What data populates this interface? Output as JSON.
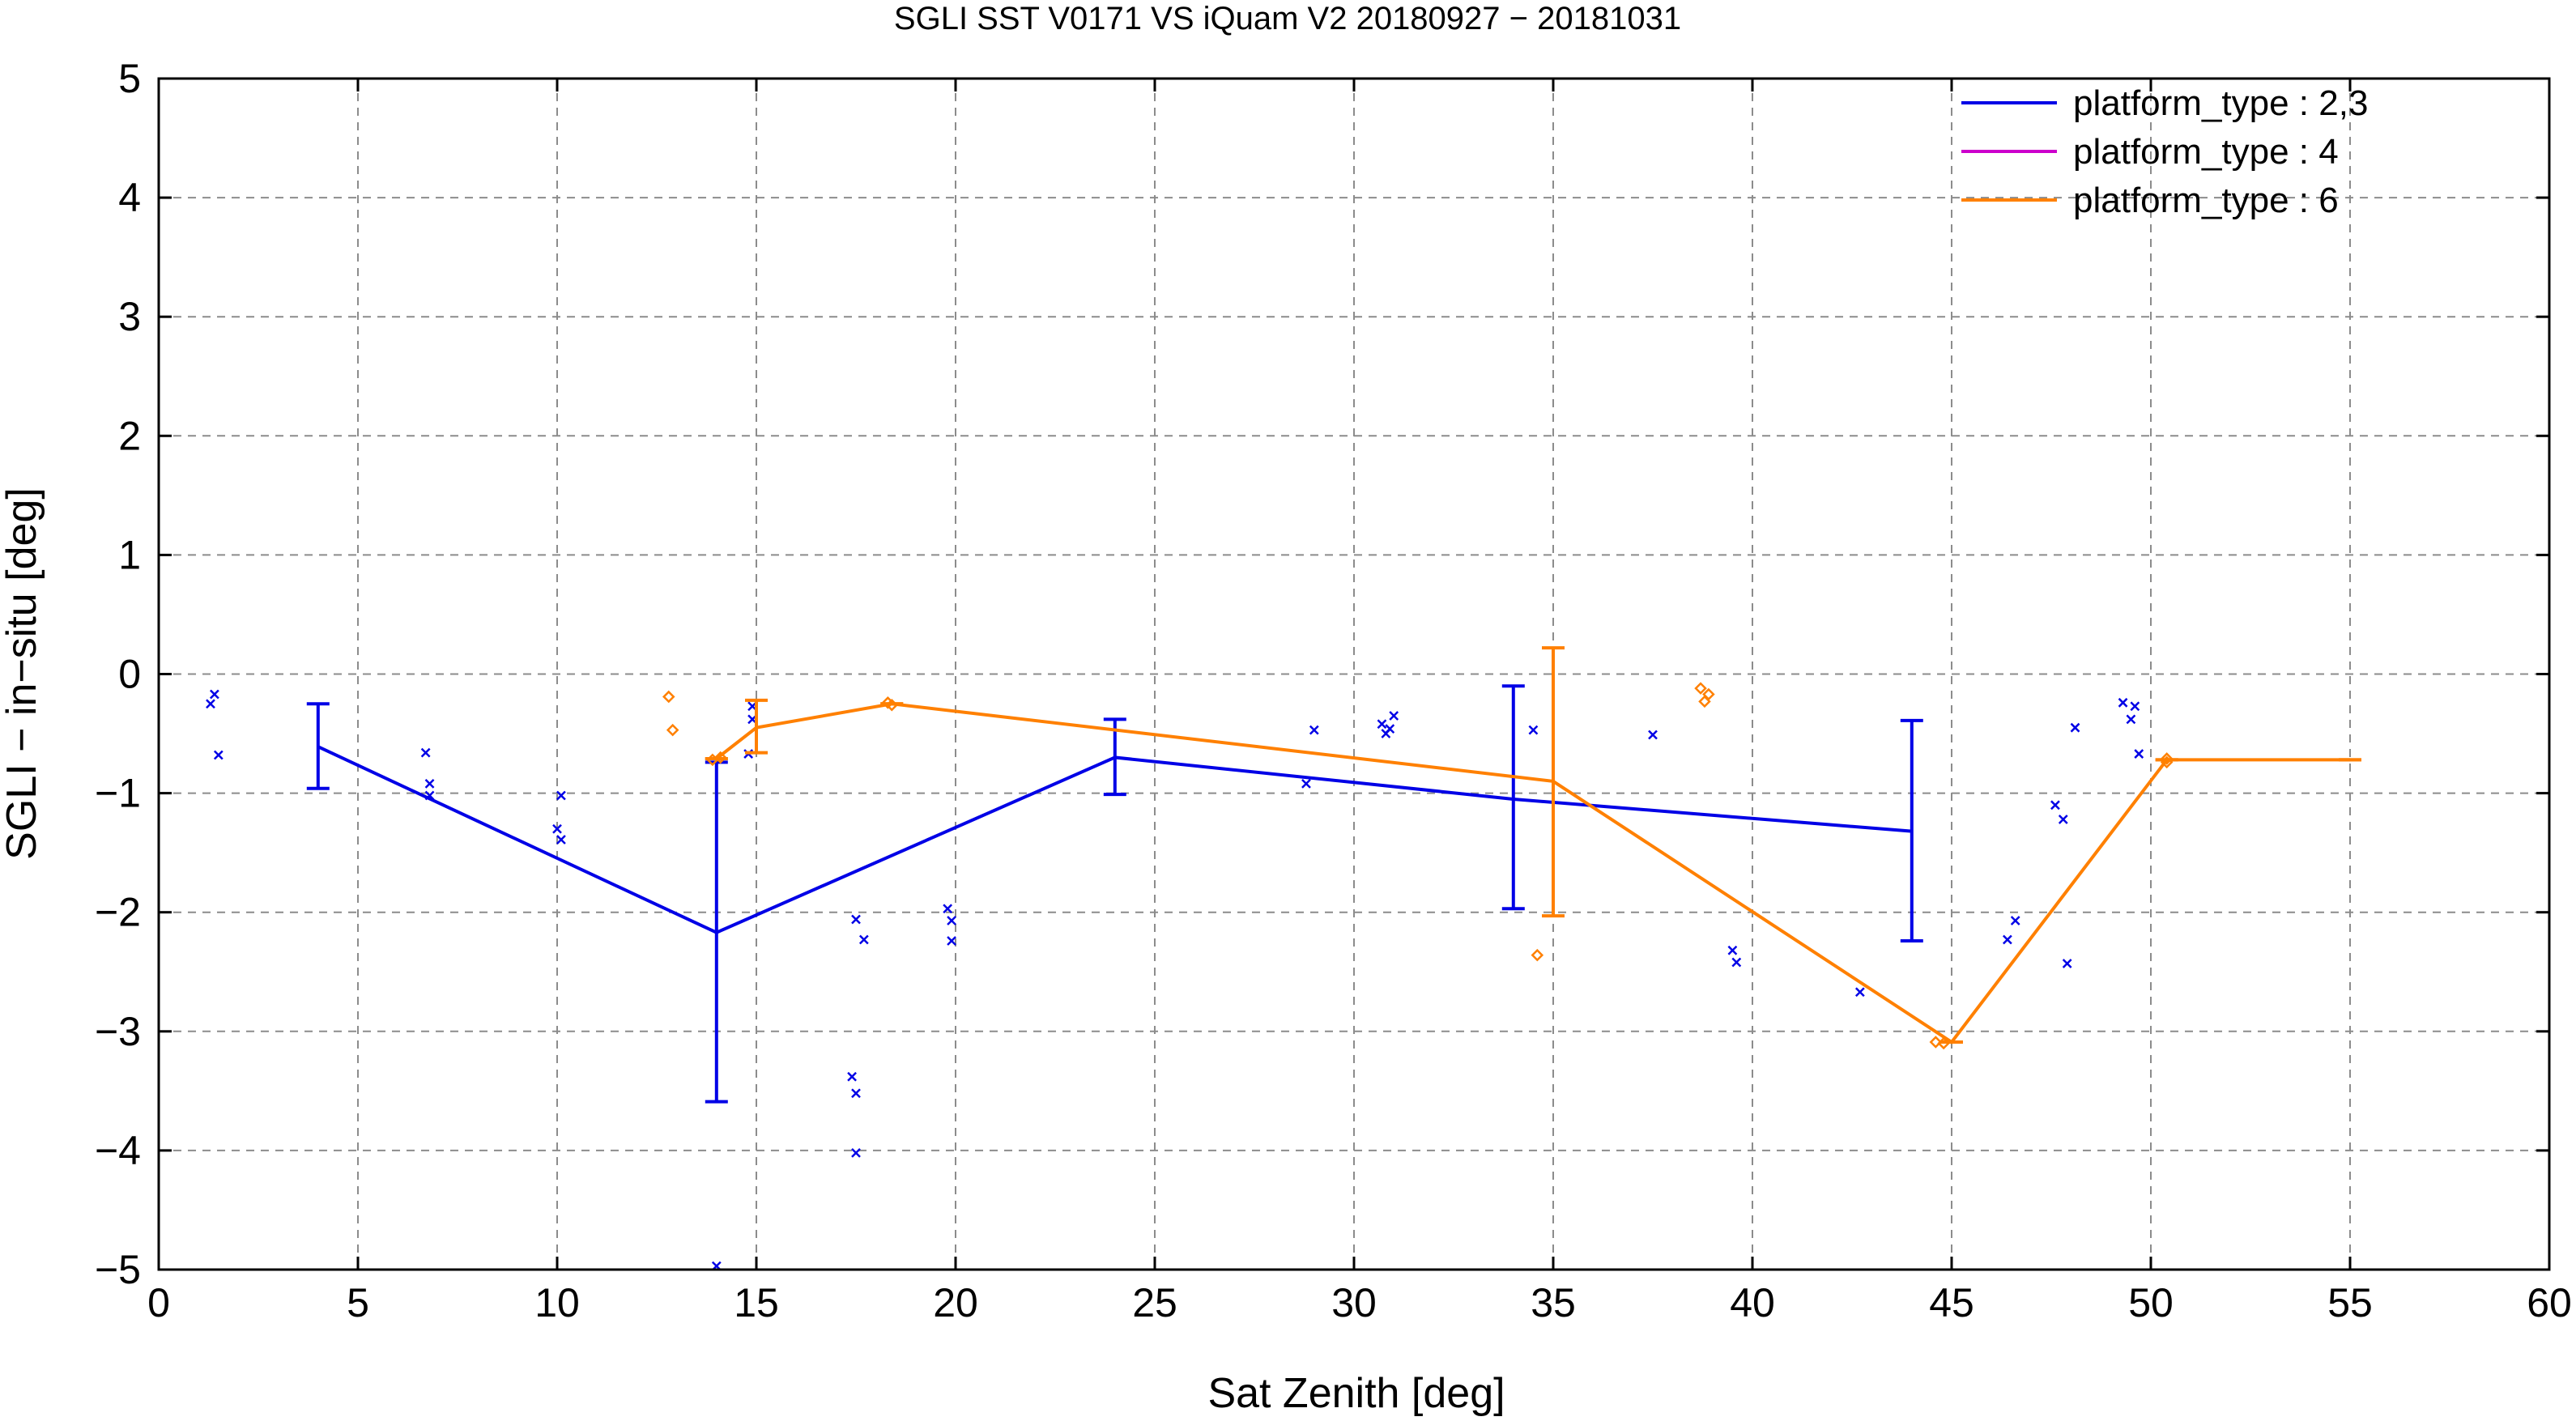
{
  "chart_data": {
    "type": "line",
    "title": "SGLI SST V0171 VS iQuam V2 20180927 − 20181031",
    "xlabel": "Sat Zenith [deg]",
    "ylabel": "SGLI − in−situ [deg]",
    "xlim": [
      0,
      60
    ],
    "ylim": [
      -5,
      5
    ],
    "x_ticks": [
      "0",
      "5",
      "10",
      "15",
      "20",
      "25",
      "30",
      "35",
      "40",
      "45",
      "50",
      "55",
      "60"
    ],
    "y_ticks": [
      "−5",
      "−4",
      "−3",
      "−2",
      "−1",
      "0",
      "1",
      "2",
      "3",
      "4",
      "5"
    ],
    "grid": true,
    "legend_position": "top-right",
    "series": [
      {
        "name": "platform_type : 2,3",
        "color": "#0000e6",
        "marker": "x",
        "line": [
          {
            "x": 4,
            "y": -0.61,
            "err_low": -0.96,
            "err_high": -0.25
          },
          {
            "x": 14,
            "y": -2.17,
            "err_low": -3.59,
            "err_high": -0.74
          },
          {
            "x": 24,
            "y": -0.7,
            "err_low": -1.01,
            "err_high": -0.38
          },
          {
            "x": 34,
            "y": -1.05,
            "err_low": -1.97,
            "err_high": -0.1
          },
          {
            "x": 44,
            "y": -1.32,
            "err_low": -2.24,
            "err_high": -0.39
          }
        ],
        "points": [
          [
            1.3,
            -0.25
          ],
          [
            1.4,
            -0.17
          ],
          [
            1.5,
            -0.68
          ],
          [
            6.7,
            -0.66
          ],
          [
            6.8,
            -0.92
          ],
          [
            6.8,
            -1.02
          ],
          [
            10.0,
            -1.3
          ],
          [
            10.1,
            -1.39
          ],
          [
            10.1,
            -1.02
          ],
          [
            14.0,
            -4.97
          ],
          [
            14.8,
            -0.67
          ],
          [
            14.9,
            -0.38
          ],
          [
            14.9,
            -0.27
          ],
          [
            17.4,
            -3.38
          ],
          [
            17.5,
            -3.52
          ],
          [
            17.5,
            -2.06
          ],
          [
            17.7,
            -2.23
          ],
          [
            17.5,
            -4.02
          ],
          [
            19.8,
            -1.97
          ],
          [
            19.9,
            -2.07
          ],
          [
            19.9,
            -2.24
          ],
          [
            28.8,
            -0.92
          ],
          [
            29.0,
            -0.47
          ],
          [
            30.7,
            -0.42
          ],
          [
            30.8,
            -0.5
          ],
          [
            30.9,
            -0.46
          ],
          [
            31.0,
            -0.35
          ],
          [
            34.5,
            -0.47
          ],
          [
            37.5,
            -0.51
          ],
          [
            39.5,
            -2.32
          ],
          [
            39.6,
            -2.42
          ],
          [
            42.7,
            -2.67
          ],
          [
            46.4,
            -2.23
          ],
          [
            46.6,
            -2.07
          ],
          [
            47.6,
            -1.1
          ],
          [
            47.8,
            -1.22
          ],
          [
            47.9,
            -2.43
          ],
          [
            48.1,
            -0.45
          ],
          [
            49.3,
            -0.24
          ],
          [
            49.5,
            -0.38
          ],
          [
            49.6,
            -0.27
          ],
          [
            49.7,
            -0.67
          ]
        ]
      },
      {
        "name": "platform_type : 4",
        "color": "#cc00cc",
        "marker": "diamond",
        "line": [],
        "points": []
      },
      {
        "name": "platform_type : 6",
        "color": "#ff8000",
        "marker": "diamond",
        "line": [
          {
            "x": 14,
            "y": -0.71,
            "err_low": -0.71,
            "err_high": -0.71
          },
          {
            "x": 15,
            "y": -0.45,
            "err_low": -0.66,
            "err_high": -0.22
          },
          {
            "x": 18.4,
            "y": -0.25,
            "err_low": -0.25,
            "err_high": -0.25
          },
          {
            "x": 35,
            "y": -0.9,
            "err_low": -2.03,
            "err_high": 0.22
          },
          {
            "x": 45,
            "y": -3.09,
            "err_low": -3.09,
            "err_high": -3.09
          },
          {
            "x": 50.4,
            "y": -0.72,
            "err_low": -0.72,
            "err_high": -0.72
          },
          {
            "x": 55,
            "y": -0.72,
            "err_low": -0.72,
            "err_high": -0.72
          }
        ],
        "points": [
          [
            12.8,
            -0.19
          ],
          [
            12.9,
            -0.47
          ],
          [
            13.9,
            -0.72
          ],
          [
            14.1,
            -0.7
          ],
          [
            18.3,
            -0.24
          ],
          [
            18.4,
            -0.26
          ],
          [
            34.6,
            -2.36
          ],
          [
            38.7,
            -0.12
          ],
          [
            38.8,
            -0.23
          ],
          [
            38.9,
            -0.17
          ],
          [
            44.6,
            -3.09
          ],
          [
            44.8,
            -3.1
          ],
          [
            50.4,
            -0.71
          ],
          [
            50.4,
            -0.74
          ]
        ]
      }
    ]
  }
}
